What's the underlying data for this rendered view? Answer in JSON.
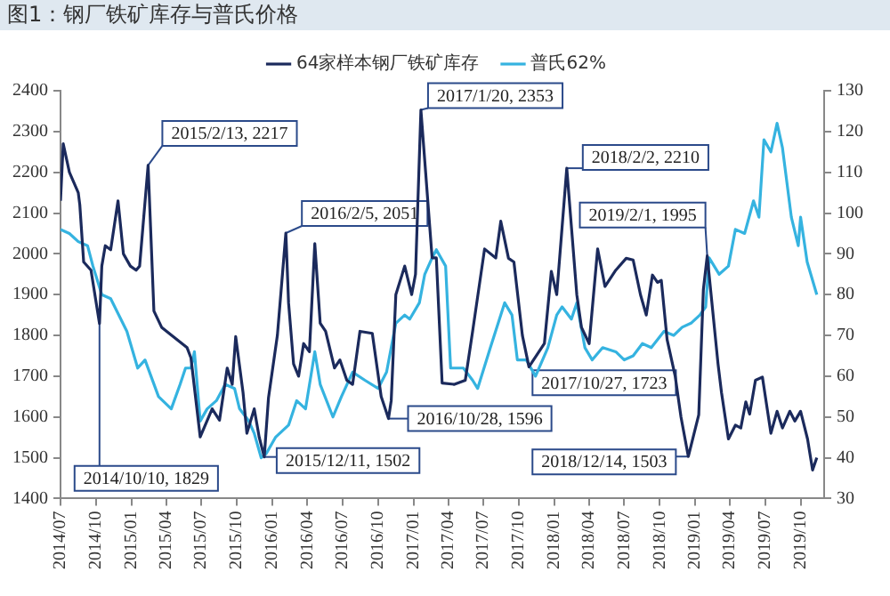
{
  "chart_data": {
    "type": "line",
    "title": "图1：钢厂铁矿库存与普氏价格",
    "series": [
      {
        "name": "64家样本钢厂铁矿库存",
        "color": "#1b2a5c",
        "axis": "y",
        "x": [
          "2014-07-01",
          "2014-07-08",
          "2014-07-24",
          "2014-08-16",
          "2014-08-20",
          "2014-08-30",
          "2014-09-18",
          "2014-10-10",
          "2014-10-16",
          "2014-10-25",
          "2014-11-08",
          "2014-11-27",
          "2014-12-11",
          "2014-12-29",
          "2015-01-13",
          "2015-01-22",
          "2015-02-13",
          "2015-02-28",
          "2015-03-20",
          "2015-04-15",
          "2015-05-25",
          "2015-06-04",
          "2015-06-28",
          "2015-07-29",
          "2015-08-17",
          "2015-09-06",
          "2015-09-19",
          "2015-09-28",
          "2015-10-17",
          "2015-10-27",
          "2015-11-15",
          "2015-11-28",
          "2015-12-11",
          "2015-12-22",
          "2016-01-14",
          "2016-02-05",
          "2016-02-12",
          "2016-02-25",
          "2016-03-09",
          "2016-03-22",
          "2016-04-06",
          "2016-04-20",
          "2016-05-04",
          "2016-05-18",
          "2016-06-10",
          "2016-06-24",
          "2016-07-12",
          "2016-07-27",
          "2016-08-15",
          "2016-09-16",
          "2016-10-09",
          "2016-10-28",
          "2016-11-04",
          "2016-11-16",
          "2016-12-09",
          "2016-12-27",
          "2017-01-06",
          "2017-01-20",
          "2017-02-18",
          "2017-03-01",
          "2017-03-16",
          "2017-04-17",
          "2017-05-15",
          "2017-06-03",
          "2017-07-04",
          "2017-08-02",
          "2017-08-15",
          "2017-09-04",
          "2017-09-18",
          "2017-10-10",
          "2017-10-27",
          "2017-12-06",
          "2017-12-24",
          "2018-01-07",
          "2018-02-02",
          "2018-02-28",
          "2018-03-12",
          "2018-04-01",
          "2018-04-23",
          "2018-05-12",
          "2018-06-09",
          "2018-07-06",
          "2018-07-24",
          "2018-08-12",
          "2018-08-27",
          "2018-09-12",
          "2018-09-25",
          "2018-10-05",
          "2018-10-20",
          "2018-11-10",
          "2018-11-25",
          "2018-12-14",
          "2019-01-10",
          "2019-01-22",
          "2019-02-01",
          "2019-03-01",
          "2019-03-10",
          "2019-03-28",
          "2019-04-15",
          "2019-04-29",
          "2019-05-12",
          "2019-05-22",
          "2019-06-06",
          "2019-06-24",
          "2019-07-16",
          "2019-08-01",
          "2019-08-15",
          "2019-09-03",
          "2019-09-16",
          "2019-10-01",
          "2019-10-19",
          "2019-11-01",
          "2019-11-12"
        ],
        "values": [
          2130,
          2270,
          2200,
          2150,
          2120,
          1980,
          1960,
          1829,
          1970,
          2020,
          2010,
          2130,
          2000,
          1970,
          1960,
          1970,
          2217,
          1860,
          1820,
          1800,
          1770,
          1745,
          1551,
          1620,
          1592,
          1720,
          1680,
          1797,
          1660,
          1560,
          1620,
          1550,
          1502,
          1647,
          1800,
          2051,
          1880,
          1730,
          1700,
          1780,
          1760,
          2025,
          1830,
          1810,
          1720,
          1740,
          1690,
          1680,
          1810,
          1805,
          1650,
          1596,
          1640,
          1900,
          1970,
          1900,
          1950,
          2353,
          1990,
          1990,
          1683,
          1680,
          1690,
          1810,
          2012,
          1990,
          2080,
          1989,
          1980,
          1800,
          1723,
          1780,
          1957,
          1900,
          2210,
          1900,
          1820,
          1780,
          2012,
          1920,
          1960,
          1989,
          1985,
          1900,
          1850,
          1948,
          1930,
          1935,
          1790,
          1700,
          1600,
          1503,
          1605,
          1912,
          1995,
          1730,
          1660,
          1546,
          1580,
          1573,
          1637,
          1607,
          1690,
          1698,
          1560,
          1614,
          1573,
          1614,
          1590,
          1614,
          1546,
          1470,
          1500
        ]
      },
      {
        "name": "普氏62%",
        "color": "#35b3e0",
        "axis": "y2",
        "x": [
          "2014-07-01",
          "2014-07-24",
          "2014-08-16",
          "2014-09-09",
          "2014-09-23",
          "2014-10-16",
          "2014-11-08",
          "2014-12-20",
          "2015-01-17",
          "2015-02-05",
          "2015-03-12",
          "2015-04-14",
          "2015-05-07",
          "2015-05-21",
          "2015-06-04",
          "2015-06-13",
          "2015-06-28",
          "2015-07-16",
          "2015-08-09",
          "2015-09-01",
          "2015-09-25",
          "2015-10-08",
          "2015-11-01",
          "2015-11-15",
          "2015-12-03",
          "2015-12-16",
          "2016-01-09",
          "2016-02-12",
          "2016-03-04",
          "2016-03-27",
          "2016-04-20",
          "2016-05-04",
          "2016-06-06",
          "2016-06-28",
          "2016-07-27",
          "2016-08-28",
          "2016-10-01",
          "2016-10-23",
          "2016-11-16",
          "2016-12-09",
          "2016-12-22",
          "2017-01-16",
          "2017-01-30",
          "2017-02-18",
          "2017-03-01",
          "2017-03-25",
          "2017-04-07",
          "2017-05-10",
          "2017-06-03",
          "2017-06-16",
          "2017-07-19",
          "2017-08-25",
          "2017-09-13",
          "2017-09-27",
          "2017-10-20",
          "2017-11-13",
          "2017-12-15",
          "2018-01-07",
          "2018-01-21",
          "2018-02-14",
          "2018-02-28",
          "2018-03-21",
          "2018-04-09",
          "2018-05-06",
          "2018-06-09",
          "2018-07-01",
          "2018-07-24",
          "2018-08-17",
          "2018-09-09",
          "2018-10-12",
          "2018-11-06",
          "2018-11-28",
          "2018-12-21",
          "2019-01-13",
          "2019-01-28",
          "2019-02-06",
          "2019-03-04",
          "2019-03-28",
          "2019-04-15",
          "2019-05-09",
          "2019-06-01",
          "2019-06-15",
          "2019-06-28",
          "2019-07-16",
          "2019-08-01",
          "2019-08-15",
          "2019-09-07",
          "2019-09-25",
          "2019-10-01",
          "2019-10-18",
          "2019-11-12"
        ],
        "values": [
          96,
          95,
          93,
          92,
          87,
          80,
          79,
          71,
          62,
          64,
          55,
          52,
          58,
          62,
          62,
          66,
          49,
          52,
          54,
          58,
          57,
          52,
          49,
          46,
          40,
          41,
          45,
          48,
          54,
          52,
          66,
          58,
          50,
          55,
          61,
          59,
          57,
          61,
          73,
          75,
          74,
          78,
          85,
          89,
          91,
          87,
          62,
          62,
          59,
          57,
          67,
          78,
          75,
          64,
          64,
          60,
          67,
          75,
          77,
          74,
          78,
          67,
          64,
          67,
          66,
          64,
          65,
          68,
          67,
          71,
          70,
          72,
          73,
          75,
          77,
          89,
          85,
          87,
          96,
          95,
          103,
          99,
          118,
          115,
          122,
          116,
          99,
          92,
          99,
          88,
          80
        ]
      }
    ],
    "xlim": [
      "2014-07-01",
      "2019-12-01"
    ],
    "xticks": [
      {
        "value": "2014-07",
        "label": "2014/07"
      },
      {
        "value": "2014-10",
        "label": "2014/10"
      },
      {
        "value": "2015-01",
        "label": "2015/01"
      },
      {
        "value": "2015-04",
        "label": "2015/04"
      },
      {
        "value": "2015-07",
        "label": "2015/07"
      },
      {
        "value": "2015-10",
        "label": "2015/10"
      },
      {
        "value": "2016-01",
        "label": "2016/01"
      },
      {
        "value": "2016-04",
        "label": "2016/04"
      },
      {
        "value": "2016-07",
        "label": "2016/07"
      },
      {
        "value": "2016-10",
        "label": "2016/10"
      },
      {
        "value": "2017-01",
        "label": "2017/01"
      },
      {
        "value": "2017-04",
        "label": "2017/04"
      },
      {
        "value": "2017-07",
        "label": "2017/07"
      },
      {
        "value": "2017-10",
        "label": "2017/10"
      },
      {
        "value": "2018-01",
        "label": "2018/01"
      },
      {
        "value": "2018-04",
        "label": "2018/04"
      },
      {
        "value": "2018-07",
        "label": "2018/07"
      },
      {
        "value": "2018-10",
        "label": "2018/10"
      },
      {
        "value": "2019-01",
        "label": "2019/01"
      },
      {
        "value": "2019-04",
        "label": "2019/04"
      },
      {
        "value": "2019-07",
        "label": "2019/07"
      },
      {
        "value": "2019-10",
        "label": "2019/10"
      }
    ],
    "ylim": [
      1400,
      2400
    ],
    "yticks": [
      1400,
      1500,
      1600,
      1700,
      1800,
      1900,
      2000,
      2100,
      2200,
      2300,
      2400
    ],
    "y2lim": [
      30,
      130
    ],
    "y2ticks": [
      30,
      40,
      50,
      60,
      70,
      80,
      90,
      100,
      110,
      120,
      130
    ],
    "grid": false,
    "legend": "top",
    "marker": "none",
    "line_style": "solid",
    "annotations": [
      {
        "text": "2015/2/13, 2217",
        "x": "2015-02-13",
        "y": 2217
      },
      {
        "text": "2016/2/5, 2051",
        "x": "2016-02-05",
        "y": 2051
      },
      {
        "text": "2017/1/20, 2353",
        "x": "2017-01-20",
        "y": 2353
      },
      {
        "text": "2018/2/2, 2210",
        "x": "2018-02-02",
        "y": 2210
      },
      {
        "text": "2014/10/10, 1829",
        "x": "2014-10-10",
        "y": 1829
      },
      {
        "text": "2015/12/11, 1502",
        "x": "2015-12-11",
        "y": 1502
      },
      {
        "text": "2016/10/28, 1596",
        "x": "2016-10-28",
        "y": 1596
      },
      {
        "text": "2017/10/27, 1723",
        "x": "2017-10-27",
        "y": 1723
      },
      {
        "text": "2018/12/14, 1503",
        "x": "2018-12-14",
        "y": 1503
      },
      {
        "text": "2019/2/1, 1995",
        "x": "2019-02-01",
        "y": 1995
      }
    ]
  }
}
